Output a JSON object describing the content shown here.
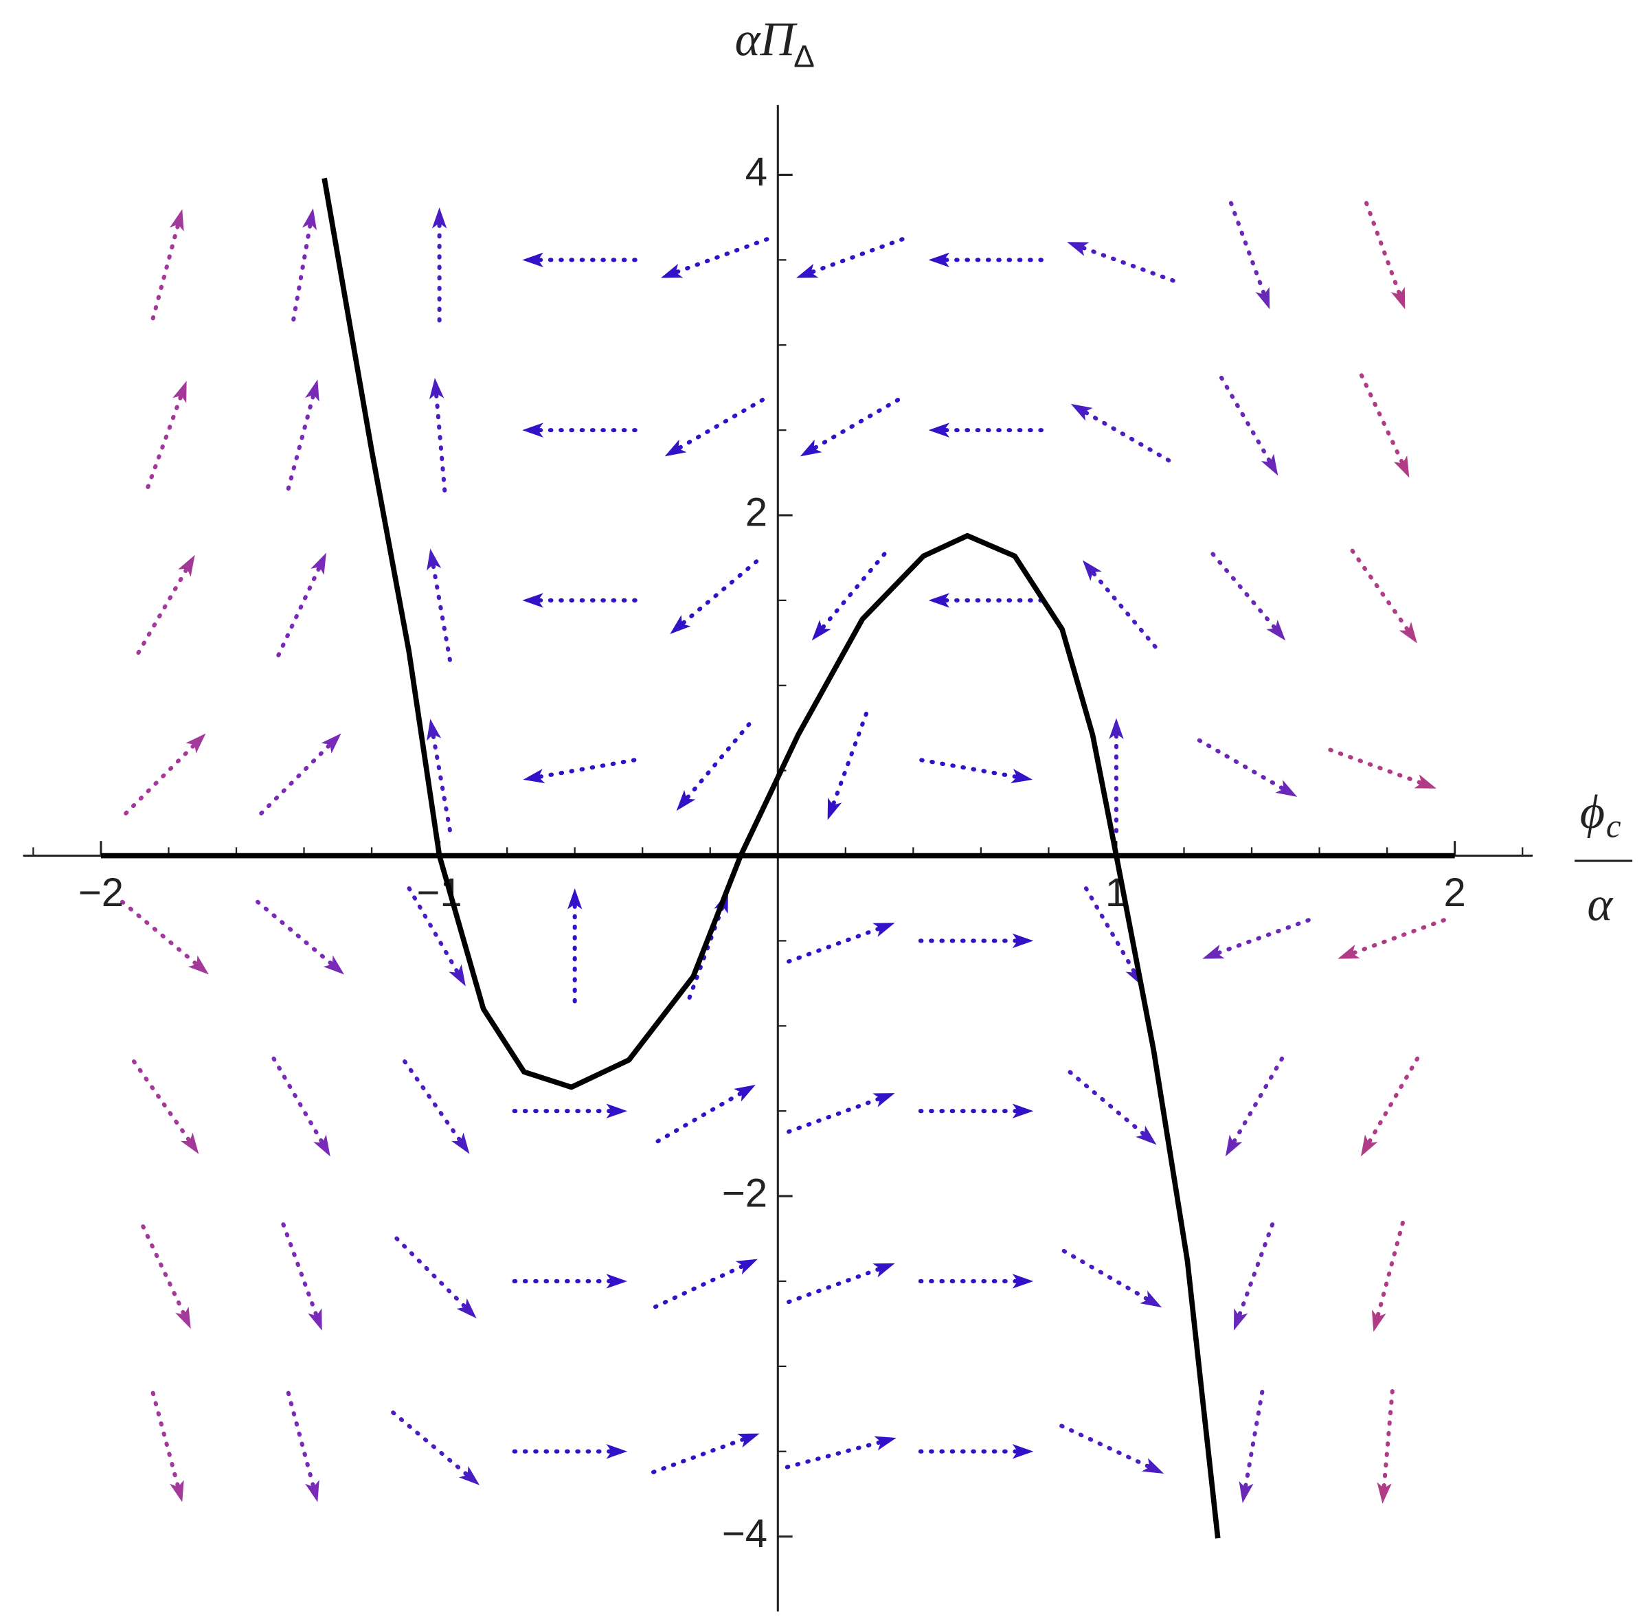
{
  "chart_data": {
    "type": "streamplot",
    "x_label": {
      "numerator": "ϕ",
      "numerator_sub": "c",
      "denominator": "α"
    },
    "y_label": {
      "text": "αΠ",
      "sub": "Δ"
    },
    "xlim": [
      -2.23,
      2.23
    ],
    "ylim": [
      -4.44,
      4.41
    ],
    "xticks": [
      {
        "value": -2,
        "label": "−2"
      },
      {
        "value": -1,
        "label": "−1"
      },
      1,
      2
    ],
    "yticks": [
      {
        "value": -4,
        "label": "−4"
      },
      {
        "value": -2,
        "label": "−2"
      },
      2,
      4
    ],
    "xminor": [
      -2.2,
      -1.8,
      -1.6,
      -1.4,
      -1.2,
      -0.8,
      -0.6,
      -0.4,
      -0.2,
      0.2,
      0.4,
      0.6,
      0.8,
      1.2,
      1.4,
      1.6,
      1.8,
      2.2
    ],
    "yminor": [
      -3.5,
      -3,
      -2.5,
      -1.5,
      -1,
      -0.5,
      0.5,
      1,
      1.5,
      2.5,
      3,
      3.5
    ],
    "lines": [
      {
        "color": "#000000",
        "x": [
          -1.34,
          -1.2,
          -1.09,
          -1.0,
          -0.87,
          -0.75,
          -0.61,
          -0.44,
          -0.25,
          -0.11,
          0.06,
          0.25,
          0.43,
          0.56,
          0.7,
          0.84,
          0.93,
          1.0,
          1.11,
          1.21,
          1.3
        ],
        "y": [
          3.98,
          2.38,
          1.2,
          0,
          -0.9,
          -1.27,
          -1.36,
          -1.2,
          -0.71,
          0,
          0.71,
          1.39,
          1.76,
          1.88,
          1.76,
          1.33,
          0.71,
          0,
          -1.14,
          -2.38,
          -4.01
        ]
      },
      {
        "color": "#000000",
        "x": [
          -2,
          2
        ],
        "y": [
          0,
          0
        ]
      }
    ],
    "field": {
      "y": [
        3.5,
        2.5,
        1.5,
        0.5,
        -0.5,
        -1.5,
        -2.5,
        -3.5
      ],
      "columns": [
        {
          "x": -1.8,
          "color": "#a33a9a",
          "angles": [
            75,
            70,
            60,
            45,
            -40,
            -55,
            -65,
            -75
          ]
        },
        {
          "x": -1.4,
          "color": "#7a2ab8",
          "angles": [
            80,
            75,
            65,
            45,
            -40,
            -60,
            -70,
            -75
          ]
        },
        {
          "x": -1.0,
          "color": "#4a1cc4",
          "angles": [
            90,
            95,
            100,
            100,
            -60,
            -55,
            -45,
            -40
          ]
        },
        {
          "x": -0.6,
          "color": "#3311c8",
          "angles": [
            180,
            180,
            180,
            190,
            90,
            0,
            0,
            0
          ]
        },
        {
          "x": -0.2,
          "color": "#3311c8",
          "angles": [
            200,
            210,
            220,
            230,
            70,
            30,
            25,
            20
          ]
        },
        {
          "x": 0.2,
          "color": "#3311c8",
          "angles": [
            200,
            210,
            230,
            250,
            20,
            20,
            20,
            15
          ]
        },
        {
          "x": 0.6,
          "color": "#3311c8",
          "angles": [
            180,
            180,
            180,
            350,
            0,
            0,
            0,
            0
          ]
        },
        {
          "x": 1.0,
          "color": "#4a1cc4",
          "angles": [
            160,
            150,
            130,
            90,
            -60,
            -40,
            -30,
            -25
          ]
        },
        {
          "x": 1.4,
          "color": "#6a28b8",
          "angles": [
            -70,
            -60,
            -50,
            -30,
            200,
            240,
            250,
            260
          ]
        },
        {
          "x": 1.8,
          "color": "#b03c88",
          "angles": [
            -70,
            -65,
            -55,
            -20,
            200,
            240,
            255,
            265
          ]
        }
      ]
    }
  }
}
